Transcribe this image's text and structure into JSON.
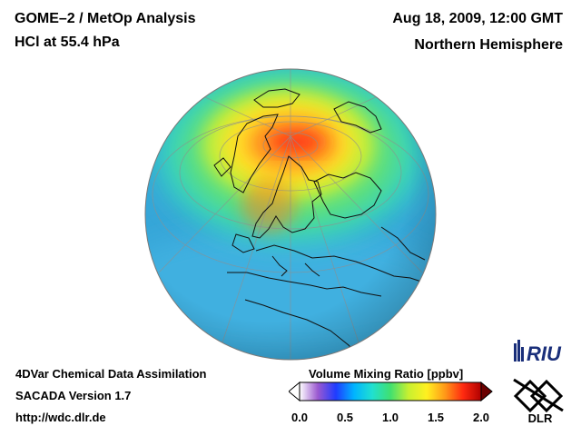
{
  "header": {
    "title_line1": "GOME–2 / MetOp Analysis",
    "title_line2": "HCl at 55.4 hPa",
    "datetime": "Aug 18, 2009, 12:00 GMT",
    "region": "Northern Hemisphere"
  },
  "footer": {
    "line1": "4DVar Chemical Data Assimilation",
    "line2": "SACADA Version 1.7",
    "line3": "http://wdc.dlr.de"
  },
  "colorbar": {
    "title": "Volume Mixing Ratio [ppbv]",
    "ticks": [
      "0.0",
      "0.5",
      "1.0",
      "1.5",
      "2.0"
    ],
    "range": [
      0.0,
      2.0
    ],
    "colors": [
      "#ffffff",
      "#9b59d0",
      "#1f3cff",
      "#00b4ff",
      "#20e0d0",
      "#40e070",
      "#c8f030",
      "#fff020",
      "#ff9a18",
      "#ff2a10",
      "#b00000"
    ]
  },
  "logos": {
    "riu": "RIU",
    "dlr": "DLR"
  },
  "map": {
    "projection": "orthographic",
    "hemisphere": "northern"
  }
}
